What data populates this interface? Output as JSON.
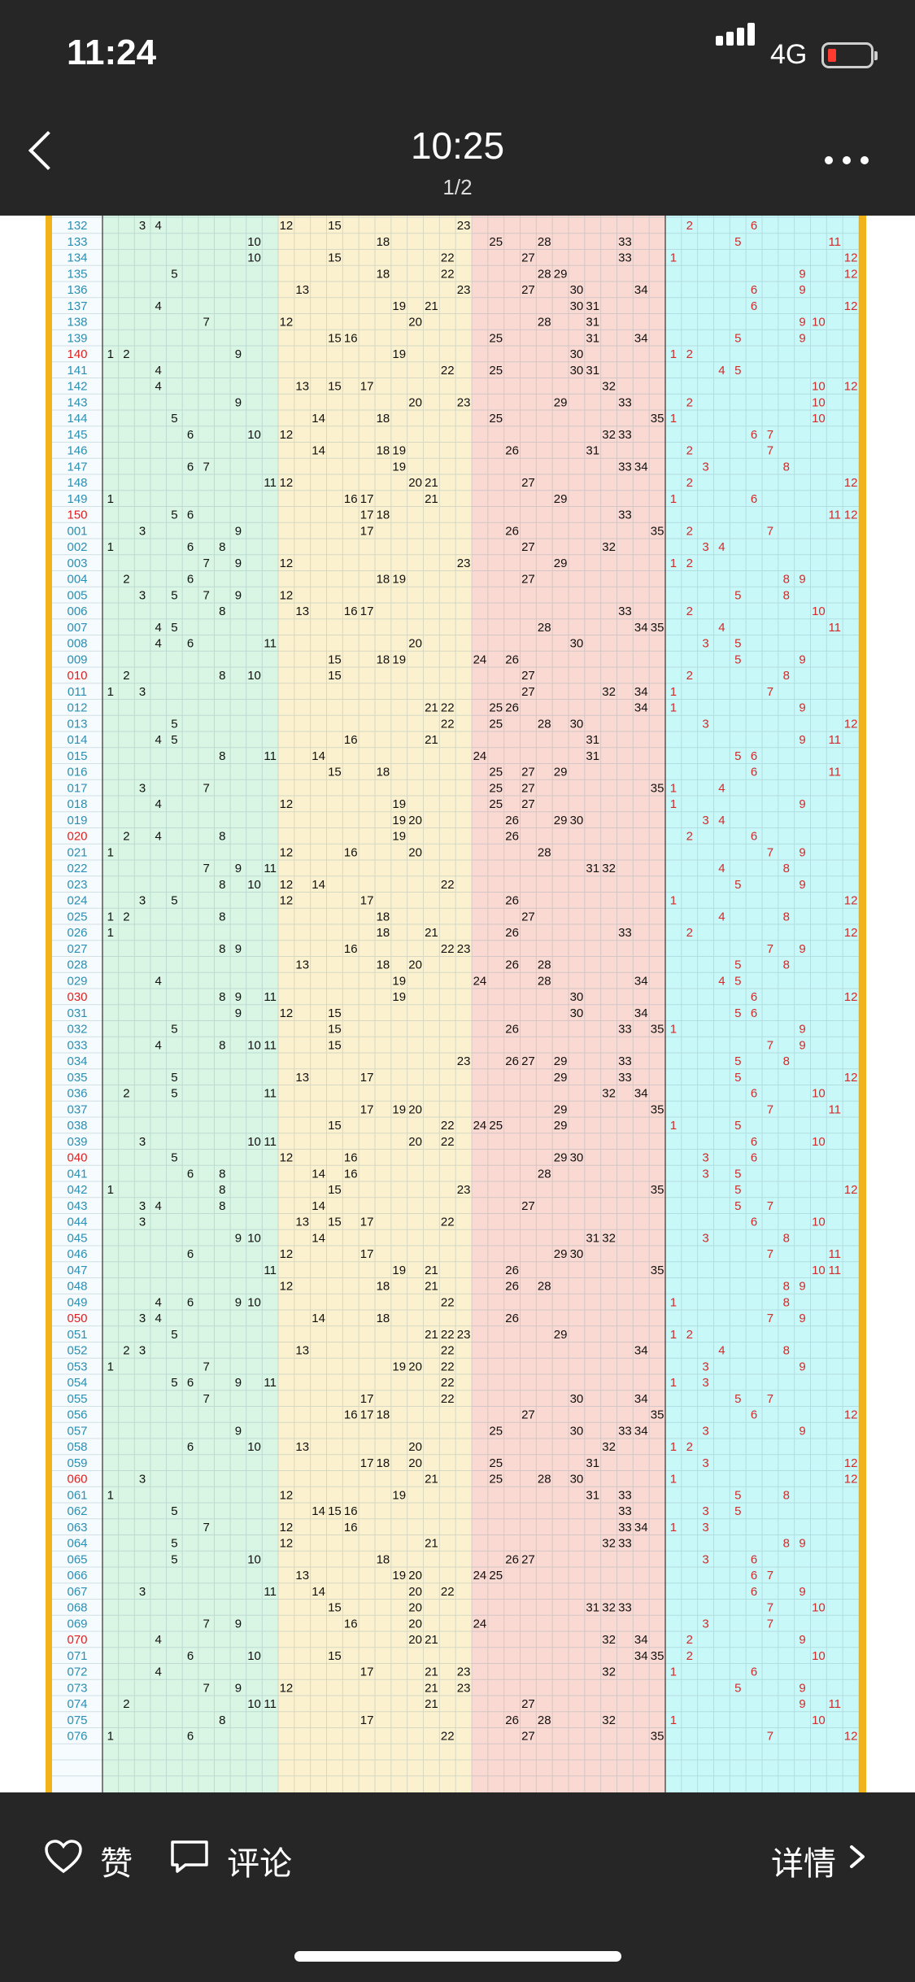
{
  "status_bar": {
    "time": "11:24",
    "network": "4G"
  },
  "header": {
    "title": "10:25",
    "page_indicator": "1/2"
  },
  "footer": {
    "like_label": "赞",
    "comment_label": "评论",
    "details_label": "详情"
  },
  "chart_data": {
    "type": "table",
    "description_visible": "lottery number distribution grid",
    "column_groups": [
      {
        "range": [
          1,
          11
        ],
        "color": "#d9f5e4"
      },
      {
        "range": [
          12,
          23
        ],
        "color": "#fbf1cf"
      },
      {
        "range": [
          24,
          35
        ],
        "color": "#f9d9d2"
      },
      {
        "range": [
          1,
          12
        ],
        "color": "#c9f8f8"
      }
    ],
    "rows": [
      {
        "id": "132",
        "front": [
          3,
          4,
          12,
          15,
          23
        ],
        "back": [
          2,
          6
        ]
      },
      {
        "id": "133",
        "front": [
          10,
          18,
          25,
          28,
          33
        ],
        "back": [
          5,
          11
        ]
      },
      {
        "id": "134",
        "front": [
          10,
          15,
          22,
          27,
          33
        ],
        "back": [
          1,
          12
        ]
      },
      {
        "id": "135",
        "front": [
          5,
          18,
          22,
          28,
          29
        ],
        "back": [
          9,
          12
        ]
      },
      {
        "id": "136",
        "front": [
          13,
          23,
          27,
          30,
          34
        ],
        "back": [
          6,
          9
        ]
      },
      {
        "id": "137",
        "front": [
          4,
          19,
          21,
          30,
          31
        ],
        "back": [
          6,
          12
        ]
      },
      {
        "id": "138",
        "front": [
          7,
          12,
          20,
          28,
          31
        ],
        "back": [
          9,
          10
        ]
      },
      {
        "id": "139",
        "front": [
          15,
          16,
          25,
          31,
          34
        ],
        "back": [
          5,
          9
        ]
      },
      {
        "id": "140",
        "front": [
          1,
          2,
          9,
          19,
          30
        ],
        "back": [
          1,
          2
        ]
      },
      {
        "id": "141",
        "front": [
          4,
          22,
          25,
          30,
          31
        ],
        "back": [
          4,
          5
        ]
      },
      {
        "id": "142",
        "front": [
          4,
          13,
          15,
          17,
          32
        ],
        "back": [
          10,
          12
        ]
      },
      {
        "id": "143",
        "front": [
          9,
          20,
          23,
          29,
          33
        ],
        "back": [
          2,
          10
        ]
      },
      {
        "id": "144",
        "front": [
          5,
          14,
          18,
          25,
          35
        ],
        "back": [
          1,
          10
        ]
      },
      {
        "id": "145",
        "front": [
          6,
          10,
          12,
          32,
          33
        ],
        "back": [
          6,
          7
        ]
      },
      {
        "id": "146",
        "front": [
          14,
          18,
          19,
          26,
          31
        ],
        "back": [
          2,
          7
        ]
      },
      {
        "id": "147",
        "front": [
          6,
          7,
          19,
          33,
          34
        ],
        "back": [
          3,
          8
        ]
      },
      {
        "id": "148",
        "front": [
          11,
          12,
          20,
          21,
          27
        ],
        "back": [
          2,
          12
        ]
      },
      {
        "id": "149",
        "front": [
          1,
          16,
          17,
          21,
          29
        ],
        "back": [
          1,
          6
        ]
      },
      {
        "id": "150",
        "front": [
          5,
          6,
          17,
          18,
          33
        ],
        "back": [
          11,
          12
        ]
      },
      {
        "id": "001",
        "front": [
          3,
          9,
          17,
          26,
          35
        ],
        "back": [
          2,
          7
        ]
      },
      {
        "id": "002",
        "front": [
          1,
          6,
          8,
          27,
          32
        ],
        "back": [
          3,
          4
        ]
      },
      {
        "id": "003",
        "front": [
          7,
          9,
          12,
          23,
          29
        ],
        "back": [
          1,
          2
        ]
      },
      {
        "id": "004",
        "front": [
          2,
          6,
          18,
          19,
          27
        ],
        "back": [
          8,
          9
        ]
      },
      {
        "id": "005",
        "front": [
          3,
          5,
          7,
          9,
          12
        ],
        "back": [
          5,
          8
        ]
      },
      {
        "id": "006",
        "front": [
          8,
          13,
          16,
          17,
          33
        ],
        "back": [
          2,
          10
        ]
      },
      {
        "id": "007",
        "front": [
          4,
          5,
          28,
          34,
          35
        ],
        "back": [
          4,
          11
        ]
      },
      {
        "id": "008",
        "front": [
          4,
          6,
          11,
          20,
          30
        ],
        "back": [
          3,
          5
        ]
      },
      {
        "id": "009",
        "front": [
          15,
          18,
          19,
          24,
          26
        ],
        "back": [
          5,
          9
        ]
      },
      {
        "id": "010",
        "front": [
          2,
          8,
          10,
          15,
          27
        ],
        "back": [
          2,
          8
        ]
      },
      {
        "id": "011",
        "front": [
          1,
          3,
          27,
          32,
          34
        ],
        "back": [
          1,
          7
        ]
      },
      {
        "id": "012",
        "front": [
          21,
          22,
          25,
          26,
          34
        ],
        "back": [
          1,
          9
        ]
      },
      {
        "id": "013",
        "front": [
          5,
          22,
          25,
          28,
          30
        ],
        "back": [
          3,
          12
        ]
      },
      {
        "id": "014",
        "front": [
          4,
          5,
          16,
          21,
          31
        ],
        "back": [
          9,
          11
        ]
      },
      {
        "id": "015",
        "front": [
          8,
          11,
          14,
          24,
          31
        ],
        "back": [
          5,
          6
        ]
      },
      {
        "id": "016",
        "front": [
          15,
          18,
          25,
          27,
          29
        ],
        "back": [
          6,
          11
        ]
      },
      {
        "id": "017",
        "front": [
          3,
          7,
          25,
          27,
          35
        ],
        "back": [
          1,
          4
        ]
      },
      {
        "id": "018",
        "front": [
          4,
          12,
          19,
          25,
          27
        ],
        "back": [
          1,
          9
        ]
      },
      {
        "id": "019",
        "front": [
          19,
          20,
          26,
          29,
          30
        ],
        "back": [
          3,
          4
        ]
      },
      {
        "id": "020",
        "front": [
          2,
          4,
          8,
          19,
          26
        ],
        "back": [
          2,
          6
        ]
      },
      {
        "id": "021",
        "front": [
          1,
          12,
          16,
          20,
          28
        ],
        "back": [
          7,
          9
        ]
      },
      {
        "id": "022",
        "front": [
          7,
          9,
          11,
          31,
          32
        ],
        "back": [
          4,
          8
        ]
      },
      {
        "id": "023",
        "front": [
          8,
          10,
          12,
          14,
          22
        ],
        "back": [
          5,
          9
        ]
      },
      {
        "id": "024",
        "front": [
          3,
          5,
          12,
          17,
          26
        ],
        "back": [
          1,
          12
        ]
      },
      {
        "id": "025",
        "front": [
          1,
          2,
          8,
          18,
          27
        ],
        "back": [
          4,
          8
        ]
      },
      {
        "id": "026",
        "front": [
          1,
          18,
          21,
          26,
          33
        ],
        "back": [
          2,
          12
        ]
      },
      {
        "id": "027",
        "front": [
          8,
          9,
          16,
          22,
          23
        ],
        "back": [
          7,
          9
        ]
      },
      {
        "id": "028",
        "front": [
          13,
          18,
          20,
          26,
          28
        ],
        "back": [
          5,
          8
        ]
      },
      {
        "id": "029",
        "front": [
          4,
          19,
          24,
          28,
          34
        ],
        "back": [
          4,
          5
        ]
      },
      {
        "id": "030",
        "front": [
          8,
          9,
          11,
          19,
          30
        ],
        "back": [
          6,
          12
        ]
      },
      {
        "id": "031",
        "front": [
          9,
          12,
          15,
          30,
          34
        ],
        "back": [
          5,
          6
        ]
      },
      {
        "id": "032",
        "front": [
          5,
          15,
          26,
          33,
          35
        ],
        "back": [
          1,
          9
        ]
      },
      {
        "id": "033",
        "front": [
          4,
          8,
          10,
          11,
          15
        ],
        "back": [
          7,
          9
        ]
      },
      {
        "id": "034",
        "front": [
          23,
          26,
          27,
          29,
          33
        ],
        "back": [
          5,
          8
        ]
      },
      {
        "id": "035",
        "front": [
          5,
          13,
          17,
          29,
          33
        ],
        "back": [
          5,
          12
        ]
      },
      {
        "id": "036",
        "front": [
          2,
          5,
          11,
          32,
          34
        ],
        "back": [
          6,
          10
        ]
      },
      {
        "id": "037",
        "front": [
          17,
          19,
          20,
          29,
          35
        ],
        "back": [
          7,
          11
        ]
      },
      {
        "id": "038",
        "front": [
          15,
          22,
          24,
          25,
          29
        ],
        "back": [
          1,
          5
        ]
      },
      {
        "id": "039",
        "front": [
          3,
          10,
          11,
          20,
          22
        ],
        "back": [
          6,
          10
        ]
      },
      {
        "id": "040",
        "front": [
          5,
          12,
          16,
          29,
          30
        ],
        "back": [
          3,
          6
        ]
      },
      {
        "id": "041",
        "front": [
          6,
          8,
          14,
          16,
          28
        ],
        "back": [
          3,
          5
        ]
      },
      {
        "id": "042",
        "front": [
          1,
          8,
          15,
          23,
          35
        ],
        "back": [
          5,
          12
        ]
      },
      {
        "id": "043",
        "front": [
          3,
          4,
          8,
          14,
          27
        ],
        "back": [
          5,
          7
        ]
      },
      {
        "id": "044",
        "front": [
          3,
          13,
          15,
          17,
          22
        ],
        "back": [
          6,
          10
        ]
      },
      {
        "id": "045",
        "front": [
          9,
          10,
          14,
          31,
          32
        ],
        "back": [
          3,
          8
        ]
      },
      {
        "id": "046",
        "front": [
          6,
          12,
          17,
          29,
          30
        ],
        "back": [
          7,
          11
        ]
      },
      {
        "id": "047",
        "front": [
          11,
          19,
          21,
          26,
          35
        ],
        "back": [
          10,
          11
        ]
      },
      {
        "id": "048",
        "front": [
          12,
          18,
          21,
          26,
          28
        ],
        "back": [
          8,
          9
        ]
      },
      {
        "id": "049",
        "front": [
          4,
          6,
          9,
          10,
          22
        ],
        "back": [
          1,
          8
        ]
      },
      {
        "id": "050",
        "front": [
          3,
          4,
          14,
          18,
          26
        ],
        "back": [
          7,
          9
        ]
      },
      {
        "id": "051",
        "front": [
          5,
          21,
          22,
          23,
          29
        ],
        "back": [
          1,
          2
        ]
      },
      {
        "id": "052",
        "front": [
          2,
          3,
          13,
          22,
          34
        ],
        "back": [
          4,
          8
        ]
      },
      {
        "id": "053",
        "front": [
          1,
          7,
          19,
          20,
          22
        ],
        "back": [
          3,
          9
        ]
      },
      {
        "id": "054",
        "front": [
          5,
          6,
          9,
          11,
          22
        ],
        "back": [
          1,
          3
        ]
      },
      {
        "id": "055",
        "front": [
          7,
          17,
          22,
          30,
          34
        ],
        "back": [
          5,
          7
        ]
      },
      {
        "id": "056",
        "front": [
          16,
          17,
          18,
          27,
          35
        ],
        "back": [
          6,
          12
        ]
      },
      {
        "id": "057",
        "front": [
          9,
          25,
          30,
          33,
          34
        ],
        "back": [
          3,
          9
        ]
      },
      {
        "id": "058",
        "front": [
          6,
          10,
          13,
          20,
          32
        ],
        "back": [
          1,
          2
        ]
      },
      {
        "id": "059",
        "front": [
          17,
          18,
          20,
          25,
          31
        ],
        "back": [
          3,
          12
        ]
      },
      {
        "id": "060",
        "front": [
          3,
          21,
          25,
          28,
          30
        ],
        "back": [
          1,
          12
        ]
      },
      {
        "id": "061",
        "front": [
          1,
          12,
          19,
          31,
          33
        ],
        "back": [
          5,
          8
        ]
      },
      {
        "id": "062",
        "front": [
          5,
          14,
          15,
          16,
          33
        ],
        "back": [
          3,
          5
        ]
      },
      {
        "id": "063",
        "front": [
          7,
          12,
          16,
          33,
          34
        ],
        "back": [
          1,
          3
        ]
      },
      {
        "id": "064",
        "front": [
          5,
          12,
          21,
          32,
          33
        ],
        "back": [
          8,
          9
        ]
      },
      {
        "id": "065",
        "front": [
          5,
          10,
          18,
          26,
          27
        ],
        "back": [
          3,
          6
        ]
      },
      {
        "id": "066",
        "front": [
          13,
          19,
          20,
          24,
          25
        ],
        "back": [
          6,
          7
        ]
      },
      {
        "id": "067",
        "front": [
          3,
          11,
          14,
          20,
          22
        ],
        "back": [
          6,
          9
        ]
      },
      {
        "id": "068",
        "front": [
          15,
          20,
          31,
          32,
          33
        ],
        "back": [
          7,
          10
        ]
      },
      {
        "id": "069",
        "front": [
          7,
          9,
          16,
          20,
          24
        ],
        "back": [
          3,
          7
        ]
      },
      {
        "id": "070",
        "front": [
          4,
          20,
          21,
          32,
          34
        ],
        "back": [
          2,
          9
        ]
      },
      {
        "id": "071",
        "front": [
          6,
          10,
          15,
          34,
          35
        ],
        "back": [
          2,
          10
        ]
      },
      {
        "id": "072",
        "front": [
          4,
          17,
          21,
          23,
          32
        ],
        "back": [
          1,
          6
        ]
      },
      {
        "id": "073",
        "front": [
          7,
          9,
          12,
          21,
          23
        ],
        "back": [
          5,
          9
        ]
      },
      {
        "id": "074",
        "front": [
          2,
          10,
          11,
          21,
          27
        ],
        "back": [
          9,
          11
        ]
      },
      {
        "id": "075",
        "front": [
          8,
          17,
          26,
          28,
          32
        ],
        "back": [
          1,
          10
        ]
      },
      {
        "id": "076",
        "front": [
          1,
          6,
          22,
          27,
          35
        ],
        "back": [
          7,
          12
        ]
      }
    ]
  }
}
